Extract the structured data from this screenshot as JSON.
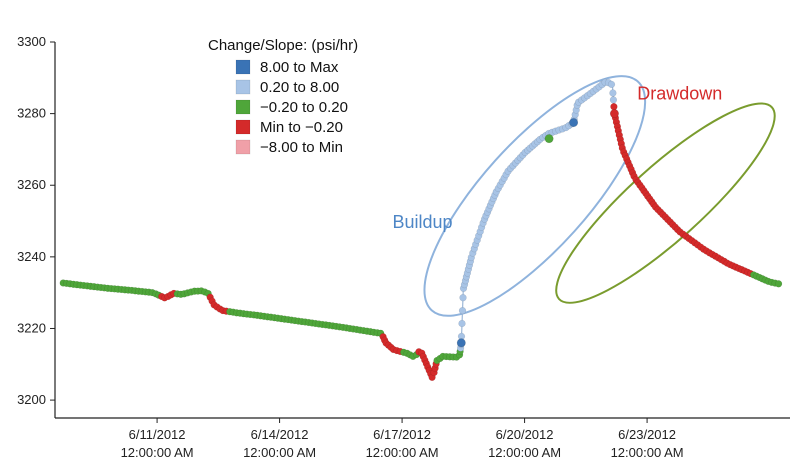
{
  "chart_data": {
    "type": "scatter",
    "title": "",
    "xlabel": "",
    "ylabel": "",
    "ylim": [
      3195,
      3300
    ],
    "xlim": [
      -2.5,
      15.5
    ],
    "yticks": [
      3200,
      3220,
      3240,
      3260,
      3280,
      3300
    ],
    "yticklabels": [
      "3200",
      "3220",
      "3240",
      "3260",
      "3280",
      "3300"
    ],
    "xticks": [
      {
        "x": 0,
        "date": "6/11/2012",
        "time": "12:00:00 AM"
      },
      {
        "x": 3,
        "date": "6/14/2012",
        "time": "12:00:00 AM"
      },
      {
        "x": 6,
        "date": "6/17/2012",
        "time": "12:00:00 AM"
      },
      {
        "x": 9,
        "date": "6/20/2012",
        "time": "12:00:00 AM"
      },
      {
        "x": 12,
        "date": "6/23/2012",
        "time": "12:00:00 AM"
      }
    ],
    "legend": {
      "title": "Change/Slope: (psi/hr)",
      "position": "top-left",
      "entries": [
        {
          "label": "8.00 to Max",
          "color": "#3a73b5"
        },
        {
          "label": "0.20 to 8.00",
          "color": "#a8c4e6"
        },
        {
          "label": "−0.20 to 0.20",
          "color": "#4fa63a"
        },
        {
          "label": "Min to −0.20",
          "color": "#d42a2a"
        },
        {
          "label": "−8.00 to Min",
          "color": "#f0a0a8"
        }
      ]
    },
    "pressure_curve": [
      {
        "x": -2.3,
        "y": 3232.7
      },
      {
        "x": -1.8,
        "y": 3232.0
      },
      {
        "x": -1.2,
        "y": 3231.2
      },
      {
        "x": -0.6,
        "y": 3230.6
      },
      {
        "x": -0.1,
        "y": 3230.0
      },
      {
        "x": 0.2,
        "y": 3228.5
      },
      {
        "x": 0.4,
        "y": 3229.8
      },
      {
        "x": 0.6,
        "y": 3229.5
      },
      {
        "x": 0.9,
        "y": 3230.4
      },
      {
        "x": 1.1,
        "y": 3230.5
      },
      {
        "x": 1.25,
        "y": 3229.8
      },
      {
        "x": 1.4,
        "y": 3226.5
      },
      {
        "x": 1.6,
        "y": 3225.0
      },
      {
        "x": 2.0,
        "y": 3224.3
      },
      {
        "x": 2.5,
        "y": 3223.6
      },
      {
        "x": 3.0,
        "y": 3222.8
      },
      {
        "x": 3.5,
        "y": 3222.0
      },
      {
        "x": 4.0,
        "y": 3221.2
      },
      {
        "x": 4.5,
        "y": 3220.4
      },
      {
        "x": 5.0,
        "y": 3219.5
      },
      {
        "x": 5.5,
        "y": 3218.6
      },
      {
        "x": 5.6,
        "y": 3216.0
      },
      {
        "x": 5.8,
        "y": 3214.0
      },
      {
        "x": 6.1,
        "y": 3213.2
      },
      {
        "x": 6.3,
        "y": 3212.0
      },
      {
        "x": 6.45,
        "y": 3214.0
      },
      {
        "x": 6.6,
        "y": 3210.0
      },
      {
        "x": 6.75,
        "y": 3206.0
      },
      {
        "x": 6.85,
        "y": 3211.0
      },
      {
        "x": 7.0,
        "y": 3212.2
      },
      {
        "x": 7.3,
        "y": 3212.0
      },
      {
        "x": 7.4,
        "y": 3212.0
      },
      {
        "x": 7.45,
        "y": 3216.0
      },
      {
        "x": 7.5,
        "y": 3231.0
      },
      {
        "x": 7.7,
        "y": 3240.0
      },
      {
        "x": 8.0,
        "y": 3250.0
      },
      {
        "x": 8.3,
        "y": 3258.0
      },
      {
        "x": 8.6,
        "y": 3264.0
      },
      {
        "x": 9.0,
        "y": 3269.0
      },
      {
        "x": 9.4,
        "y": 3273.0
      },
      {
        "x": 9.6,
        "y": 3274.5
      },
      {
        "x": 10.0,
        "y": 3276.0
      },
      {
        "x": 10.2,
        "y": 3277.5
      },
      {
        "x": 10.3,
        "y": 3283.0
      },
      {
        "x": 10.6,
        "y": 3285.5
      },
      {
        "x": 11.0,
        "y": 3289.0
      },
      {
        "x": 11.15,
        "y": 3288.0
      },
      {
        "x": 11.2,
        "y": 3280.0
      },
      {
        "x": 11.4,
        "y": 3270.0
      },
      {
        "x": 11.7,
        "y": 3262.0
      },
      {
        "x": 12.2,
        "y": 3254.0
      },
      {
        "x": 12.8,
        "y": 3247.0
      },
      {
        "x": 13.4,
        "y": 3242.0
      },
      {
        "x": 14.0,
        "y": 3238.0
      },
      {
        "x": 14.5,
        "y": 3235.5
      },
      {
        "x": 15.0,
        "y": 3233.0
      },
      {
        "x": 15.3,
        "y": 3232.3
      }
    ],
    "segment_colors": [
      {
        "from": -2.3,
        "to": 0.1,
        "color": "#4fa63a"
      },
      {
        "from": 0.1,
        "to": 0.45,
        "color": "#d42a2a"
      },
      {
        "from": 0.45,
        "to": 1.3,
        "color": "#4fa63a"
      },
      {
        "from": 1.3,
        "to": 1.7,
        "color": "#d42a2a"
      },
      {
        "from": 1.7,
        "to": 5.5,
        "color": "#4fa63a"
      },
      {
        "from": 5.5,
        "to": 6.0,
        "color": "#d42a2a"
      },
      {
        "from": 6.0,
        "to": 6.4,
        "color": "#4fa63a"
      },
      {
        "from": 6.4,
        "to": 6.85,
        "color": "#d42a2a"
      },
      {
        "from": 6.85,
        "to": 7.42,
        "color": "#4fa63a"
      },
      {
        "from": 7.42,
        "to": 10.25,
        "color": "#a8c4e6"
      },
      {
        "from": 10.25,
        "to": 11.18,
        "color": "#a8c4e6"
      },
      {
        "from": 11.18,
        "to": 14.6,
        "color": "#d42a2a"
      },
      {
        "from": 14.6,
        "to": 15.3,
        "color": "#4fa63a"
      }
    ],
    "highlight_points": [
      {
        "x": 7.45,
        "y": 3216.0,
        "color": "#3a73b5"
      },
      {
        "x": 9.6,
        "y": 3273.0,
        "color": "#4fa63a"
      },
      {
        "x": 10.2,
        "y": 3277.5,
        "color": "#3a73b5"
      },
      {
        "x": 11.2,
        "y": 3280.0,
        "color": "#d42a2a"
      }
    ],
    "annotations": [
      {
        "text": "Buildup",
        "x": 6.5,
        "y": 3248,
        "color": "#4d86c6"
      },
      {
        "text": "Drawdown",
        "x": 12.8,
        "y": 3284,
        "color": "#d42a2a"
      }
    ],
    "ellipses": [
      {
        "label": "buildup-ellipse",
        "cx": 9.25,
        "cy": 3257,
        "rx": 1.3,
        "ry": 43,
        "tilt": -48,
        "color": "#8fb3dd"
      },
      {
        "label": "drawdown-ellipse",
        "cx": 12.45,
        "cy": 3255,
        "rx": 0.9,
        "ry": 40,
        "tilt": -42,
        "color": "#7a9c2e"
      }
    ]
  }
}
